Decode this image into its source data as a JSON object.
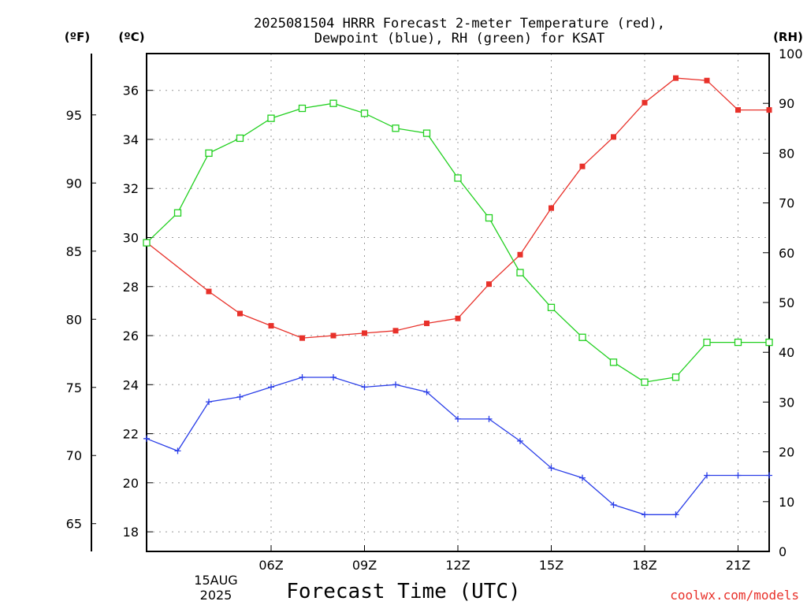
{
  "chart_data": {
    "type": "line",
    "title": "2025081504 HRRR Forecast 2-meter Temperature (red),",
    "subtitle": "Dewpoint (blue), RH (green) for KSAT",
    "xlabel": "Forecast Time (UTC)",
    "axes": {
      "x": {
        "ticks": [
          "06Z",
          "09Z",
          "12Z",
          "15Z",
          "18Z",
          "21Z"
        ],
        "date_label": [
          "15AUG",
          "2025"
        ],
        "range_hours": [
          2,
          22
        ]
      },
      "y_fahrenheit": {
        "unit": "(ºF)",
        "ticks": [
          "65",
          "70",
          "75",
          "80",
          "85",
          "90",
          "95"
        ]
      },
      "y_celsius": {
        "unit": "(ºC)",
        "ticks": [
          "18",
          "20",
          "22",
          "24",
          "26",
          "28",
          "30",
          "32",
          "34",
          "36"
        ],
        "ylim": [
          17.2,
          37.5
        ]
      },
      "y_rh": {
        "unit": "(RH)",
        "ticks": [
          "0",
          "10",
          "20",
          "30",
          "40",
          "50",
          "60",
          "70",
          "80",
          "90",
          "100"
        ],
        "ylim": [
          0,
          100
        ]
      }
    },
    "grid": true,
    "x_hours": [
      2,
      3,
      4,
      5,
      6,
      7,
      8,
      9,
      10,
      11,
      12,
      13,
      14,
      15,
      16,
      17,
      18,
      19,
      20,
      21,
      22
    ],
    "series": [
      {
        "name": "Temperature",
        "color": "#e8312a",
        "marker": "filled-square",
        "axis": "celsius",
        "x": [
          2,
          4,
          5,
          6,
          7,
          8,
          9,
          10,
          11,
          12,
          13,
          14,
          15,
          16,
          17,
          18,
          19,
          20,
          21,
          22
        ],
        "values": [
          29.8,
          27.8,
          26.9,
          26.4,
          25.9,
          26.0,
          26.1,
          26.2,
          26.5,
          26.7,
          28.1,
          29.3,
          31.2,
          32.9,
          34.1,
          35.5,
          36.5,
          36.4,
          35.2,
          35.2
        ]
      },
      {
        "name": "Dewpoint",
        "color": "#2a3ee8",
        "marker": "plus",
        "axis": "celsius",
        "x": [
          2,
          3,
          4,
          5,
          6,
          7,
          8,
          9,
          10,
          11,
          12,
          13,
          14,
          15,
          16,
          17,
          18,
          19,
          20,
          21,
          22
        ],
        "values": [
          21.8,
          21.3,
          23.3,
          23.5,
          23.9,
          24.3,
          24.3,
          23.9,
          24.0,
          23.7,
          22.6,
          22.6,
          21.7,
          20.6,
          20.2,
          19.1,
          18.7,
          18.7,
          20.3,
          20.3,
          20.3
        ]
      },
      {
        "name": "RH",
        "color": "#22d020",
        "marker": "open-square",
        "axis": "rh",
        "x": [
          2,
          3,
          4,
          5,
          6,
          7,
          8,
          9,
          10,
          11,
          12,
          13,
          14,
          15,
          16,
          17,
          18,
          19,
          20,
          21,
          22
        ],
        "values": [
          62,
          68,
          80,
          83,
          87,
          89,
          90,
          88,
          85,
          84,
          75,
          67,
          56,
          49,
          43,
          38,
          34,
          35,
          42,
          42,
          42
        ]
      }
    ],
    "credit": "coolwx.com/models"
  }
}
